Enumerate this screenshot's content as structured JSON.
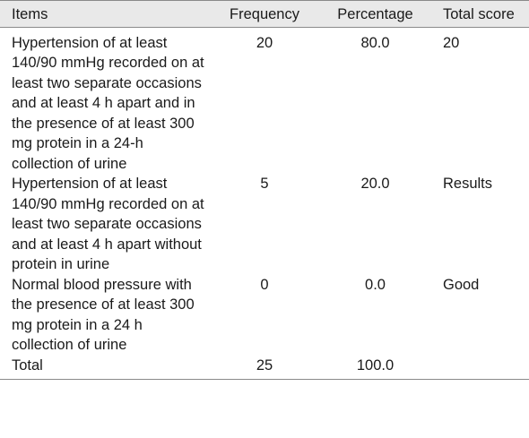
{
  "table": {
    "headers": {
      "items": "Items",
      "frequency": "Frequency",
      "percentage": "Percentage",
      "total_score": "Total score"
    },
    "rows": [
      {
        "item": "Hypertension of at least 140/90 mmHg recorded on at least two separate occasions and at least 4 h apart and in the presence of at least 300 mg protein in a 24-h collection of urine",
        "frequency": "20",
        "percentage": "80.0",
        "total_score": "20"
      },
      {
        "item": "Hypertension of at least 140/90 mmHg recorded on at least two separate occasions and at least 4 h apart without protein in urine",
        "frequency": "5",
        "percentage": "20.0",
        "total_score": "Results"
      },
      {
        "item": "Normal blood pressure with the presence of at least 300 mg protein in a 24 h collection of urine",
        "frequency": "0",
        "percentage": "0.0",
        "total_score": "Good"
      }
    ],
    "total": {
      "label": "Total",
      "frequency": "25",
      "percentage": "100.0",
      "total_score": ""
    }
  }
}
